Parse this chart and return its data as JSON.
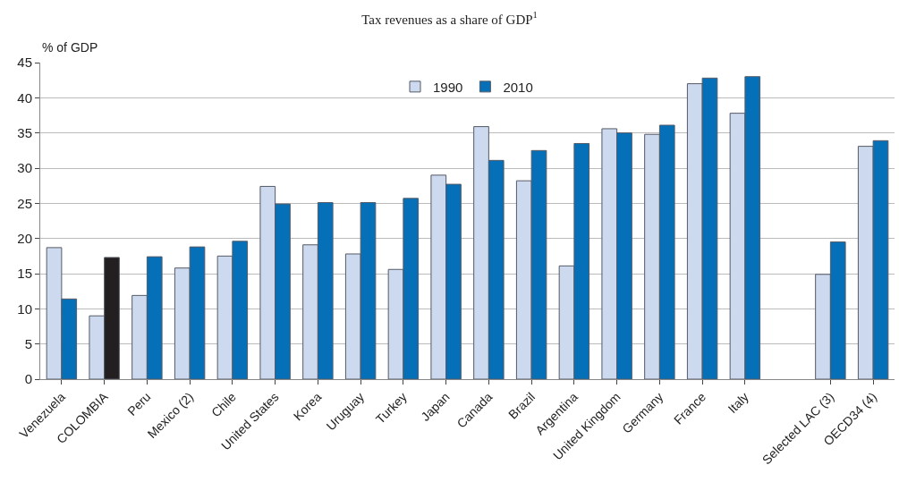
{
  "chart_data": {
    "type": "bar",
    "subtitle": "Tax revenues as a share of GDP$^{1}$",
    "ylabel": "% of GDP",
    "categories": [
      "Venezuela",
      "COLOMBIA",
      "Peru",
      "Mexico (2)",
      "Chile",
      "United States",
      "Korea",
      "Uruguay",
      "Turkey",
      "Japan",
      "Canada",
      "Brazil",
      "Argentina",
      "United Kingdom",
      "Germany",
      "France",
      "Italy",
      null,
      "Selected LAC (3)",
      "OECD34 (4)"
    ],
    "series": [
      {
        "name": "1990",
        "color": "#cdd9ee",
        "values": [
          18.7,
          9.0,
          11.9,
          15.8,
          17.5,
          27.4,
          19.1,
          17.8,
          15.6,
          29.0,
          35.9,
          28.2,
          16.1,
          35.6,
          34.8,
          42.0,
          37.8,
          null,
          14.9,
          33.1
        ]
      },
      {
        "name": "2010",
        "color": "#0570b8",
        "colors": [
          "#0570b8",
          "#231f20",
          "#0570b8",
          "#0570b8",
          "#0570b8",
          "#0570b8",
          "#0570b8",
          "#0570b8",
          "#0570b8",
          "#0570b8",
          "#0570b8",
          "#0570b8",
          "#0570b8",
          "#0570b8",
          "#0570b8",
          "#0570b8",
          "#0570b8",
          "#0570b8",
          "#0570b8",
          "#0570b8"
        ],
        "values": [
          11.4,
          17.3,
          17.4,
          18.8,
          19.6,
          24.9,
          25.1,
          25.1,
          25.7,
          27.7,
          31.1,
          32.5,
          33.5,
          35.0,
          36.1,
          42.8,
          43.0,
          null,
          19.5,
          33.9
        ]
      }
    ],
    "ylim": [
      0,
      45
    ],
    "yticks": [
      0,
      5,
      10,
      15,
      20,
      25,
      30,
      35,
      40,
      45
    ],
    "grid": "y",
    "legend": "top"
  }
}
